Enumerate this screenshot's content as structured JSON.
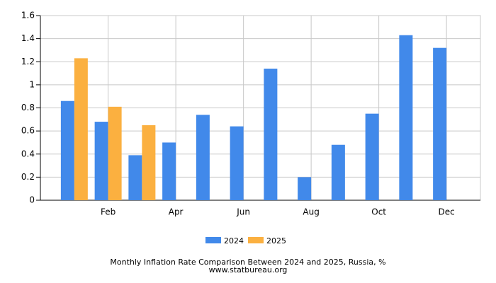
{
  "chart_data": {
    "type": "bar",
    "title": "Monthly Inflation Rate Comparison Between 2024 and 2025, Russia, %",
    "subtitle": "www.statbureau.org",
    "categories": [
      null,
      "Feb",
      null,
      "Apr",
      null,
      "Jun",
      null,
      "Aug",
      null,
      "Oct",
      null,
      "Dec"
    ],
    "series": [
      {
        "name": "2024",
        "color": "#4189ea",
        "values": [
          0.86,
          0.68,
          0.39,
          0.5,
          0.74,
          0.64,
          1.14,
          0.2,
          0.48,
          0.75,
          1.43,
          1.32
        ]
      },
      {
        "name": "2025",
        "color": "#fbb040",
        "values": [
          1.23,
          0.81,
          0.65,
          null,
          null,
          null,
          null,
          null,
          null,
          null,
          null,
          null
        ]
      }
    ],
    "ylim": [
      0,
      1.6
    ],
    "yticks": [
      0,
      0.2,
      0.4,
      0.6,
      0.8,
      1,
      1.2,
      1.4,
      1.6
    ],
    "grid": true,
    "legend": "bottom"
  }
}
